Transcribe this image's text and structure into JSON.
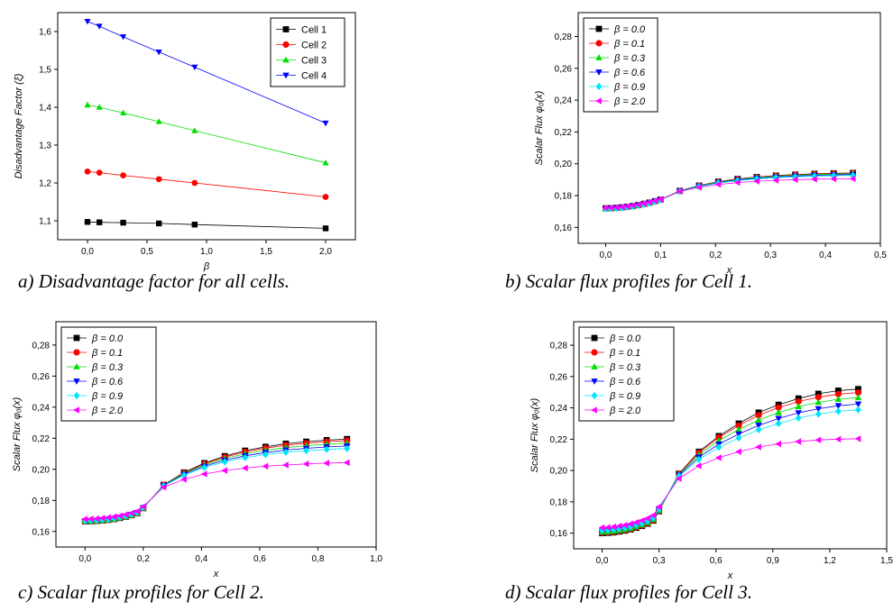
{
  "captions": {
    "a": "a) Disadvantage factor for all cells.",
    "b": "b) Scalar flux profiles for Cell 1.",
    "c": "c) Scalar flux profiles for Cell 2.",
    "d": "d) Scalar flux profiles for Cell 3."
  },
  "chart_data": [
    {
      "id": "a",
      "type": "line",
      "xlabel": "β",
      "ylabel": "Disadvantage Factor (ξ)",
      "xlim": [
        -0.25,
        2.25
      ],
      "ylim": [
        1.05,
        1.65
      ],
      "xticks": [
        0.0,
        0.5,
        1.0,
        1.5,
        2.0
      ],
      "xtick_labels": [
        "0,0",
        "0,5",
        "1,0",
        "1,5",
        "2,0"
      ],
      "yticks": [
        1.1,
        1.2,
        1.3,
        1.4,
        1.5,
        1.6
      ],
      "ytick_labels": [
        "1,1",
        "1,2",
        "1,3",
        "1,4",
        "1,5",
        "1,6"
      ],
      "legend": "top-right",
      "grid": false,
      "x": [
        0.0,
        0.1,
        0.3,
        0.6,
        0.9,
        2.0
      ],
      "series": [
        {
          "name": "Cell 1",
          "color": "#000000",
          "marker": "square",
          "values": [
            1.097,
            1.096,
            1.095,
            1.093,
            1.09,
            1.08
          ]
        },
        {
          "name": "Cell 2",
          "color": "#ff0000",
          "marker": "circle",
          "values": [
            1.23,
            1.227,
            1.22,
            1.21,
            1.2,
            1.163
          ]
        },
        {
          "name": "Cell 3",
          "color": "#00dd00",
          "marker": "triangle-up",
          "values": [
            1.406,
            1.4,
            1.385,
            1.362,
            1.338,
            1.253
          ]
        },
        {
          "name": "Cell 4",
          "color": "#0000ff",
          "marker": "triangle-down",
          "values": [
            1.627,
            1.614,
            1.586,
            1.546,
            1.506,
            1.358
          ]
        }
      ]
    },
    {
      "id": "b",
      "type": "line",
      "xlabel": "x",
      "ylabel": "Scalar Flux φ₀(x)",
      "xlim": [
        -0.05,
        0.5
      ],
      "ylim": [
        0.15,
        0.295
      ],
      "xticks": [
        0.0,
        0.1,
        0.2,
        0.3,
        0.4,
        0.5
      ],
      "xtick_labels": [
        "0,0",
        "0,1",
        "0,2",
        "0,3",
        "0,4",
        "0,5"
      ],
      "yticks": [
        0.16,
        0.18,
        0.2,
        0.22,
        0.24,
        0.26,
        0.28
      ],
      "ytick_labels": [
        "0,16",
        "0,18",
        "0,20",
        "0,22",
        "0,24",
        "0,26",
        "0,28"
      ],
      "legend": "top-left",
      "grid": false,
      "x": [
        0.0,
        0.01,
        0.02,
        0.03,
        0.04,
        0.05,
        0.06,
        0.07,
        0.08,
        0.09,
        0.1,
        0.135,
        0.17,
        0.205,
        0.24,
        0.275,
        0.31,
        0.345,
        0.38,
        0.415,
        0.45
      ],
      "series": [
        {
          "name": "β = 0.0",
          "color": "#000000",
          "marker": "square",
          "values": [
            0.172,
            0.1721,
            0.1723,
            0.1726,
            0.173,
            0.1735,
            0.1741,
            0.1748,
            0.1756,
            0.1765,
            0.1775,
            0.183,
            0.1863,
            0.1888,
            0.1905,
            0.1917,
            0.1926,
            0.1932,
            0.1937,
            0.194,
            0.1942
          ]
        },
        {
          "name": "β = 0.1",
          "color": "#ff0000",
          "marker": "circle",
          "values": [
            0.172,
            0.1721,
            0.1723,
            0.1726,
            0.173,
            0.1735,
            0.1741,
            0.1748,
            0.1756,
            0.1765,
            0.1775,
            0.183,
            0.1862,
            0.1887,
            0.1904,
            0.1916,
            0.1925,
            0.1931,
            0.1935,
            0.1938,
            0.194
          ]
        },
        {
          "name": "β = 0.3",
          "color": "#00dd00",
          "marker": "triangle-up",
          "values": [
            0.1719,
            0.172,
            0.1722,
            0.1725,
            0.1729,
            0.1734,
            0.174,
            0.1747,
            0.1755,
            0.1764,
            0.1774,
            0.1829,
            0.1861,
            0.1885,
            0.1902,
            0.1914,
            0.1922,
            0.1928,
            0.1932,
            0.1935,
            0.1937
          ]
        },
        {
          "name": "β = 0.6",
          "color": "#0000ff",
          "marker": "triangle-down",
          "values": [
            0.1718,
            0.1719,
            0.1721,
            0.1724,
            0.1728,
            0.1733,
            0.1739,
            0.1746,
            0.1754,
            0.1763,
            0.1773,
            0.1828,
            0.1859,
            0.1882,
            0.1898,
            0.1909,
            0.1917,
            0.1923,
            0.1927,
            0.193,
            0.1932
          ]
        },
        {
          "name": "β = 0.9",
          "color": "#00e5ff",
          "marker": "diamond",
          "values": [
            0.1717,
            0.1718,
            0.172,
            0.1723,
            0.1727,
            0.1732,
            0.1738,
            0.1745,
            0.1753,
            0.1762,
            0.1772,
            0.1827,
            0.1857,
            0.1879,
            0.1894,
            0.1905,
            0.1913,
            0.1918,
            0.1922,
            0.1925,
            0.1927
          ]
        },
        {
          "name": "β = 2.0",
          "color": "#ff00ff",
          "marker": "triangle-left",
          "values": [
            0.1722,
            0.1723,
            0.1725,
            0.1728,
            0.1732,
            0.1737,
            0.1743,
            0.175,
            0.1758,
            0.1766,
            0.1776,
            0.1826,
            0.1852,
            0.187,
            0.1882,
            0.189,
            0.1896,
            0.19,
            0.1903,
            0.1905,
            0.1906
          ]
        }
      ]
    },
    {
      "id": "c",
      "type": "line",
      "xlabel": "x",
      "ylabel": "Scalar Flux φ₀(x)",
      "xlim": [
        -0.1,
        1.0
      ],
      "ylim": [
        0.15,
        0.295
      ],
      "xticks": [
        0.0,
        0.2,
        0.4,
        0.6,
        0.8,
        1.0
      ],
      "xtick_labels": [
        "0,0",
        "0,2",
        "0,4",
        "0,6",
        "0,8",
        "1,0"
      ],
      "yticks": [
        0.16,
        0.18,
        0.2,
        0.22,
        0.24,
        0.26,
        0.28
      ],
      "ytick_labels": [
        "0,16",
        "0,18",
        "0,20",
        "0,22",
        "0,24",
        "0,26",
        "0,28"
      ],
      "legend": "top-left",
      "grid": false,
      "x": [
        0.0,
        0.02,
        0.04,
        0.06,
        0.08,
        0.1,
        0.12,
        0.14,
        0.16,
        0.18,
        0.2,
        0.27,
        0.34,
        0.41,
        0.48,
        0.55,
        0.62,
        0.69,
        0.76,
        0.83,
        0.9
      ],
      "series": [
        {
          "name": "β = 0.0",
          "color": "#000000",
          "marker": "square",
          "values": [
            0.1665,
            0.1666,
            0.1668,
            0.1671,
            0.1675,
            0.168,
            0.1687,
            0.1695,
            0.1705,
            0.1718,
            0.175,
            0.19,
            0.198,
            0.204,
            0.2085,
            0.212,
            0.2145,
            0.2165,
            0.2178,
            0.2188,
            0.2195
          ]
        },
        {
          "name": "β = 0.1",
          "color": "#ff0000",
          "marker": "circle",
          "values": [
            0.1666,
            0.1667,
            0.1669,
            0.1672,
            0.1676,
            0.1681,
            0.1688,
            0.1696,
            0.1706,
            0.1719,
            0.1751,
            0.1899,
            0.1977,
            0.2035,
            0.2078,
            0.2112,
            0.2136,
            0.2155,
            0.2168,
            0.2178,
            0.2185
          ]
        },
        {
          "name": "β = 0.3",
          "color": "#00dd00",
          "marker": "triangle-up",
          "values": [
            0.1667,
            0.1668,
            0.167,
            0.1673,
            0.1677,
            0.1682,
            0.1689,
            0.1697,
            0.1707,
            0.172,
            0.1752,
            0.1897,
            0.1973,
            0.2028,
            0.2069,
            0.21,
            0.2123,
            0.214,
            0.2152,
            0.2162,
            0.2168
          ]
        },
        {
          "name": "β = 0.6",
          "color": "#0000ff",
          "marker": "triangle-down",
          "values": [
            0.1668,
            0.1669,
            0.1671,
            0.1674,
            0.1678,
            0.1683,
            0.169,
            0.1698,
            0.1708,
            0.1721,
            0.1753,
            0.1895,
            0.1968,
            0.202,
            0.2058,
            0.2087,
            0.2108,
            0.2124,
            0.2135,
            0.2144,
            0.215
          ]
        },
        {
          "name": "β = 0.9",
          "color": "#00e5ff",
          "marker": "diamond",
          "values": [
            0.1669,
            0.167,
            0.1672,
            0.1675,
            0.1679,
            0.1684,
            0.1691,
            0.1699,
            0.1709,
            0.1722,
            0.1754,
            0.1893,
            0.1962,
            0.2012,
            0.2048,
            0.2075,
            0.2095,
            0.211,
            0.212,
            0.2128,
            0.2134
          ]
        },
        {
          "name": "β = 2.0",
          "color": "#ff00ff",
          "marker": "triangle-left",
          "values": [
            0.168,
            0.1681,
            0.1683,
            0.1686,
            0.169,
            0.1695,
            0.1701,
            0.1709,
            0.1718,
            0.173,
            0.176,
            0.1885,
            0.1935,
            0.197,
            0.1992,
            0.2008,
            0.202,
            0.2028,
            0.2035,
            0.204,
            0.2043
          ]
        }
      ]
    },
    {
      "id": "d",
      "type": "line",
      "xlabel": "x",
      "ylabel": "Scalar Flux φ₀(x)",
      "xlim": [
        -0.15,
        1.5
      ],
      "ylim": [
        0.15,
        0.295
      ],
      "xticks": [
        0.0,
        0.3,
        0.6,
        0.9,
        1.2,
        1.5
      ],
      "xtick_labels": [
        "0,0",
        "0,3",
        "0,6",
        "0,9",
        "1,2",
        "1,5"
      ],
      "yticks": [
        0.16,
        0.18,
        0.2,
        0.22,
        0.24,
        0.26,
        0.28
      ],
      "ytick_labels": [
        "0,16",
        "0,18",
        "0,20",
        "0,22",
        "0,24",
        "0,26",
        "0,28"
      ],
      "legend": "top-left",
      "grid": false,
      "x": [
        0.0,
        0.03,
        0.06,
        0.09,
        0.12,
        0.15,
        0.18,
        0.21,
        0.24,
        0.27,
        0.3,
        0.405,
        0.51,
        0.615,
        0.72,
        0.825,
        0.93,
        1.035,
        1.14,
        1.245,
        1.35
      ],
      "series": [
        {
          "name": "β = 0.0",
          "color": "#000000",
          "marker": "square",
          "values": [
            0.16,
            0.1602,
            0.1605,
            0.161,
            0.1616,
            0.1624,
            0.1634,
            0.1646,
            0.166,
            0.168,
            0.174,
            0.198,
            0.212,
            0.222,
            0.23,
            0.237,
            0.242,
            0.246,
            0.249,
            0.251,
            0.252
          ]
        },
        {
          "name": "β = 0.1",
          "color": "#ff0000",
          "marker": "circle",
          "values": [
            0.1603,
            0.1605,
            0.1608,
            0.1613,
            0.1619,
            0.1627,
            0.1637,
            0.1649,
            0.1663,
            0.1683,
            0.1742,
            0.1978,
            0.2113,
            0.221,
            0.2287,
            0.2353,
            0.2402,
            0.244,
            0.2468,
            0.2488,
            0.2498
          ]
        },
        {
          "name": "β = 0.3",
          "color": "#00dd00",
          "marker": "triangle-up",
          "values": [
            0.1607,
            0.1609,
            0.1612,
            0.1617,
            0.1623,
            0.1631,
            0.1641,
            0.1653,
            0.1667,
            0.1687,
            0.1745,
            0.1975,
            0.21,
            0.219,
            0.2262,
            0.2322,
            0.237,
            0.2408,
            0.2435,
            0.2455,
            0.2465
          ]
        },
        {
          "name": "β = 0.6",
          "color": "#0000ff",
          "marker": "triangle-down",
          "values": [
            0.1612,
            0.1614,
            0.1617,
            0.1622,
            0.1628,
            0.1636,
            0.1646,
            0.1658,
            0.1672,
            0.1692,
            0.1749,
            0.197,
            0.2085,
            0.2168,
            0.2233,
            0.2288,
            0.2332,
            0.2368,
            0.2394,
            0.2414,
            0.2424
          ]
        },
        {
          "name": "β = 0.9",
          "color": "#00e5ff",
          "marker": "diamond",
          "values": [
            0.1617,
            0.1619,
            0.1622,
            0.1627,
            0.1633,
            0.1641,
            0.1651,
            0.1663,
            0.1677,
            0.1697,
            0.1753,
            0.1965,
            0.207,
            0.2148,
            0.2208,
            0.226,
            0.23,
            0.2335,
            0.236,
            0.2378,
            0.2388
          ]
        },
        {
          "name": "β = 2.0",
          "color": "#ff00ff",
          "marker": "triangle-left",
          "values": [
            0.1635,
            0.1637,
            0.164,
            0.1645,
            0.1651,
            0.1659,
            0.1669,
            0.1681,
            0.1695,
            0.1714,
            0.1768,
            0.1948,
            0.203,
            0.2082,
            0.212,
            0.215,
            0.217,
            0.2185,
            0.2195,
            0.22,
            0.2203
          ]
        }
      ]
    }
  ]
}
